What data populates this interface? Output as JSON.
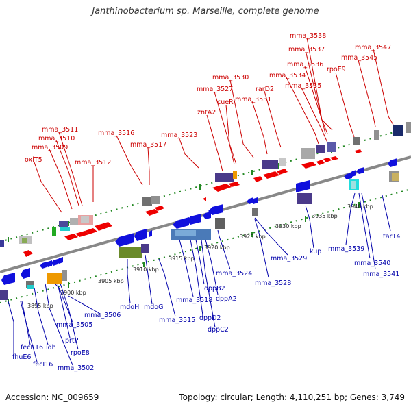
{
  "title": "Janthinobacterium sp. Marseille, complete genome",
  "footer": {
    "accession": "Accession: NC_009659",
    "summary": "Topology: circular; Length: 4,110,251 bp; Genes: 3,749"
  },
  "axis": {
    "ticks": [
      "3895 kbp",
      "3900 kbp",
      "3905 kbp",
      "3910 kbp",
      "3915 kbp",
      "3920 kbp",
      "3925 kbp",
      "3930 kbp",
      "3935 kbp",
      "3940 kbp"
    ]
  },
  "colors": {
    "forward_label": "#cc0000",
    "reverse_label": "#0000aa",
    "forward_gene": "#ee0000",
    "reverse_gene": "#1010dd",
    "backbone": "#888888",
    "track_dots": "#228822"
  },
  "labels_top": [
    "mma_3538",
    "mma_3547",
    "mma_3537",
    "mma_3545",
    "mma_3536",
    "rpoE9",
    "mma_3534",
    "mma_3535",
    "mma_3530",
    "rarD2",
    "mma_3527",
    "cueR",
    "mma_3531",
    "zntA2",
    "mma_3511",
    "mma_3516",
    "mma_3510",
    "mma_3523",
    "mma_3509",
    "mma_3517",
    "oxlT5",
    "mma_3512"
  ],
  "labels_bottom": [
    "tar14",
    "mma_3539",
    "mma_3540",
    "mma_3541",
    "kup",
    "mma_3529",
    "mma_3528",
    "mma_3524",
    "dppA2",
    "dppB2",
    "mma_3518",
    "dppD2",
    "dppC2",
    "mma_3515",
    "mdoH",
    "mdoG",
    "mma_3506",
    "mma_3505",
    "prtP",
    "rpoE8",
    "mma_3502",
    "idh",
    "fecR16",
    "fhuE6",
    "fecI16"
  ]
}
